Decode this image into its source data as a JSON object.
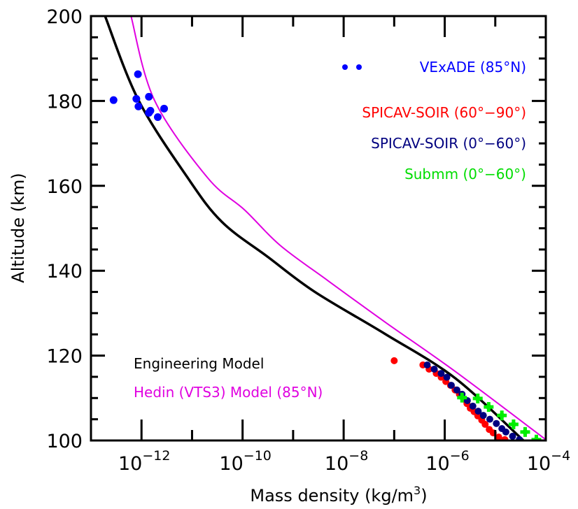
{
  "chart_data": {
    "type": "scatter",
    "title": "",
    "xlabel": "Mass density (kg/m",
    "xlabel_sup": "3",
    "xlabel_close": ")",
    "ylabel": "Altitude (km)",
    "xscale": "log",
    "xlim": [
      1e-13,
      0.0001
    ],
    "ylim": [
      100,
      200
    ],
    "grid": false,
    "x_ticks": [
      {
        "value": 1e-12,
        "base": "10",
        "exp": "−12"
      },
      {
        "value": 1e-10,
        "base": "10",
        "exp": "−10"
      },
      {
        "value": 1e-08,
        "base": "10",
        "exp": "−8"
      },
      {
        "value": 1e-06,
        "base": "10",
        "exp": "−6"
      },
      {
        "value": 0.0001,
        "base": "10",
        "exp": "−4"
      }
    ],
    "x_minor_ticks": [
      1e-11,
      1e-09,
      1e-07,
      1e-05
    ],
    "y_ticks": [
      {
        "value": 100,
        "label": "100"
      },
      {
        "value": 120,
        "label": "120"
      },
      {
        "value": 140,
        "label": "140"
      },
      {
        "value": 160,
        "label": "160"
      },
      {
        "value": 180,
        "label": "180"
      },
      {
        "value": 200,
        "label": "200"
      }
    ],
    "y_minor_step": 5,
    "series": [
      {
        "name": "Engineering Model",
        "kind": "line",
        "color": "#000000",
        "points": [
          [
            1.9e-13,
            200
          ],
          [
            8.7e-13,
            180.2
          ],
          [
            8.1e-12,
            162.0
          ],
          [
            3.9e-11,
            151.5
          ],
          [
            3.2e-10,
            143.2
          ],
          [
            2.7e-09,
            135.0
          ],
          [
            6.6e-08,
            125.1
          ],
          [
            1.6e-06,
            114.7
          ],
          [
            3.6e-05,
            100
          ]
        ]
      },
      {
        "name": "Hedin (VTS3) Model (85°N)",
        "kind": "line",
        "color": "#e000e0",
        "points": [
          [
            6.2e-13,
            200
          ],
          [
            1.8e-12,
            180.2
          ],
          [
            2e-11,
            162.0
          ],
          [
            1.1e-10,
            154.3
          ],
          [
            5.5e-10,
            146.0
          ],
          [
            4.7e-09,
            137.8
          ],
          [
            6.6e-08,
            127.9
          ],
          [
            1.6e-06,
            116.3
          ],
          [
            0.0001,
            100.2
          ]
        ]
      },
      {
        "name": "VExADE (85°N)",
        "kind": "scatter",
        "color": "#0000ff",
        "points": [
          [
            2.8e-13,
            180.2
          ],
          [
            8.5e-13,
            186.3
          ],
          [
            7.9e-13,
            180.5
          ],
          [
            8.7e-13,
            178.7
          ],
          [
            1.4e-12,
            181.0
          ],
          [
            1.4e-12,
            177.2
          ],
          [
            1.5e-12,
            177.7
          ],
          [
            2.1e-12,
            176.2
          ],
          [
            2.8e-12,
            178.2
          ]
        ]
      },
      {
        "name": "SPICAV-SOIR (60°−90°)",
        "kind": "scatter",
        "color": "#ff0000",
        "points": [
          [
            1e-07,
            118.8
          ],
          [
            3.7e-07,
            117.8
          ],
          [
            4.9e-07,
            116.8
          ],
          [
            6.8e-07,
            115.8
          ],
          [
            8.5e-07,
            114.9
          ],
          [
            1.05e-06,
            113.9
          ],
          [
            1.3e-06,
            113.0
          ],
          [
            1.6e-06,
            111.9
          ],
          [
            1.95e-06,
            110.9
          ],
          [
            2.4e-06,
            109.7
          ],
          [
            2.75e-06,
            108.7
          ],
          [
            3.2e-06,
            107.6
          ],
          [
            3.8e-06,
            106.8
          ],
          [
            4.5e-06,
            105.8
          ],
          [
            5.4e-06,
            104.8
          ],
          [
            6.3e-06,
            103.8
          ],
          [
            7.6e-06,
            102.6
          ],
          [
            9.1e-06,
            101.8
          ],
          [
            1.17e-05,
            100.8
          ],
          [
            1.55e-05,
            100.2
          ]
        ]
      },
      {
        "name": "SPICAV-SOIR (0°−60°)",
        "kind": "scatter",
        "color": "#000080",
        "points": [
          [
            4.5e-07,
            117.8
          ],
          [
            6.2e-07,
            116.8
          ],
          [
            8.5e-07,
            115.8
          ],
          [
            1.1e-06,
            114.9
          ],
          [
            1.35e-06,
            113.0
          ],
          [
            1.74e-06,
            111.9
          ],
          [
            2.2e-06,
            110.9
          ],
          [
            2.8e-06,
            109.4
          ],
          [
            3.6e-06,
            108.1
          ],
          [
            4.6e-06,
            106.9
          ],
          [
            5.8e-06,
            105.9
          ],
          [
            7.8e-06,
            105.0
          ],
          [
            1.05e-05,
            104.0
          ],
          [
            1.35e-05,
            102.8
          ],
          [
            1.62e-05,
            102.0
          ],
          [
            2.2e-05,
            101.0
          ],
          [
            3e-05,
            100.2
          ]
        ]
      },
      {
        "name": "Submm (0°−60°)",
        "kind": "scatter",
        "marker": "cross",
        "color": "#00ee00",
        "points": [
          [
            2.2e-06,
            110.1
          ],
          [
            4.5e-06,
            109.9
          ],
          [
            7.4e-06,
            107.9
          ],
          [
            1.35e-05,
            105.9
          ],
          [
            2.3e-05,
            103.8
          ],
          [
            3.9e-05,
            102.0
          ],
          [
            6.5e-05,
            100.2
          ]
        ]
      }
    ],
    "legend_top_right": [
      {
        "label": "VExADE (85°N)",
        "color": "#0000ff",
        "marker": "dots"
      },
      {
        "label": "SPICAV-SOIR (60°−90°)",
        "color": "#ff0000"
      },
      {
        "label": "SPICAV-SOIR (0°−60°)",
        "color": "#000080"
      },
      {
        "label": "Submm (0°−60°)",
        "color": "#00dd00"
      }
    ],
    "legend_bottom_left": [
      {
        "label": "Engineering Model",
        "color": "#000000"
      },
      {
        "label": "Hedin (VTS3) Model (85°N)",
        "color": "#e000e0"
      }
    ]
  }
}
